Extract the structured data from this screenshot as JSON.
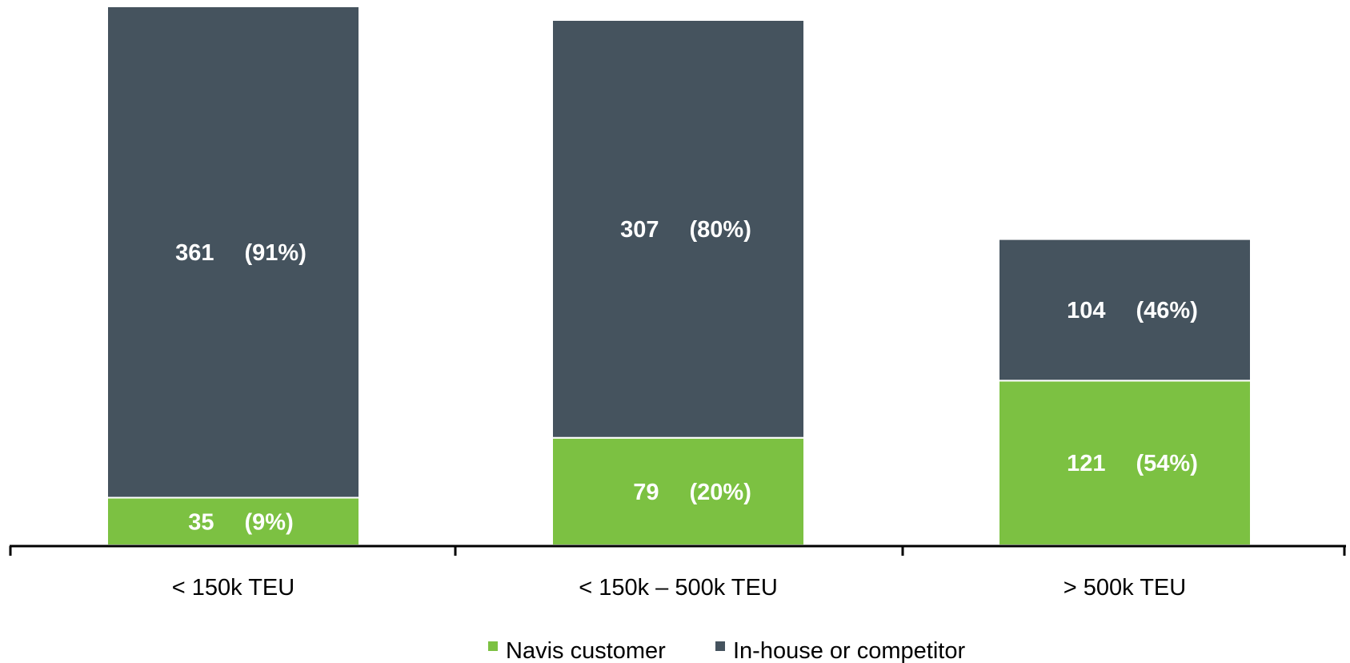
{
  "chart_data": {
    "type": "bar",
    "stacked": true,
    "title": "",
    "xlabel": "",
    "ylabel": "",
    "categories": [
      "< 150k TEU",
      "< 150k – 500k TEU",
      "> 500k TEU"
    ],
    "series": [
      {
        "name": "Navis customer",
        "color": "#7cc142",
        "values": [
          35,
          79,
          121
        ],
        "percent_labels": [
          "(9%)",
          "(20%)",
          "(54%)"
        ]
      },
      {
        "name": "In-house or competitor",
        "color": "#45535e",
        "values": [
          361,
          307,
          104
        ],
        "percent_labels": [
          "(91%)",
          "(80%)",
          "(46%)"
        ]
      }
    ],
    "ylim": [
      0,
      396
    ],
    "grid": false,
    "legend_position": "bottom-center"
  }
}
